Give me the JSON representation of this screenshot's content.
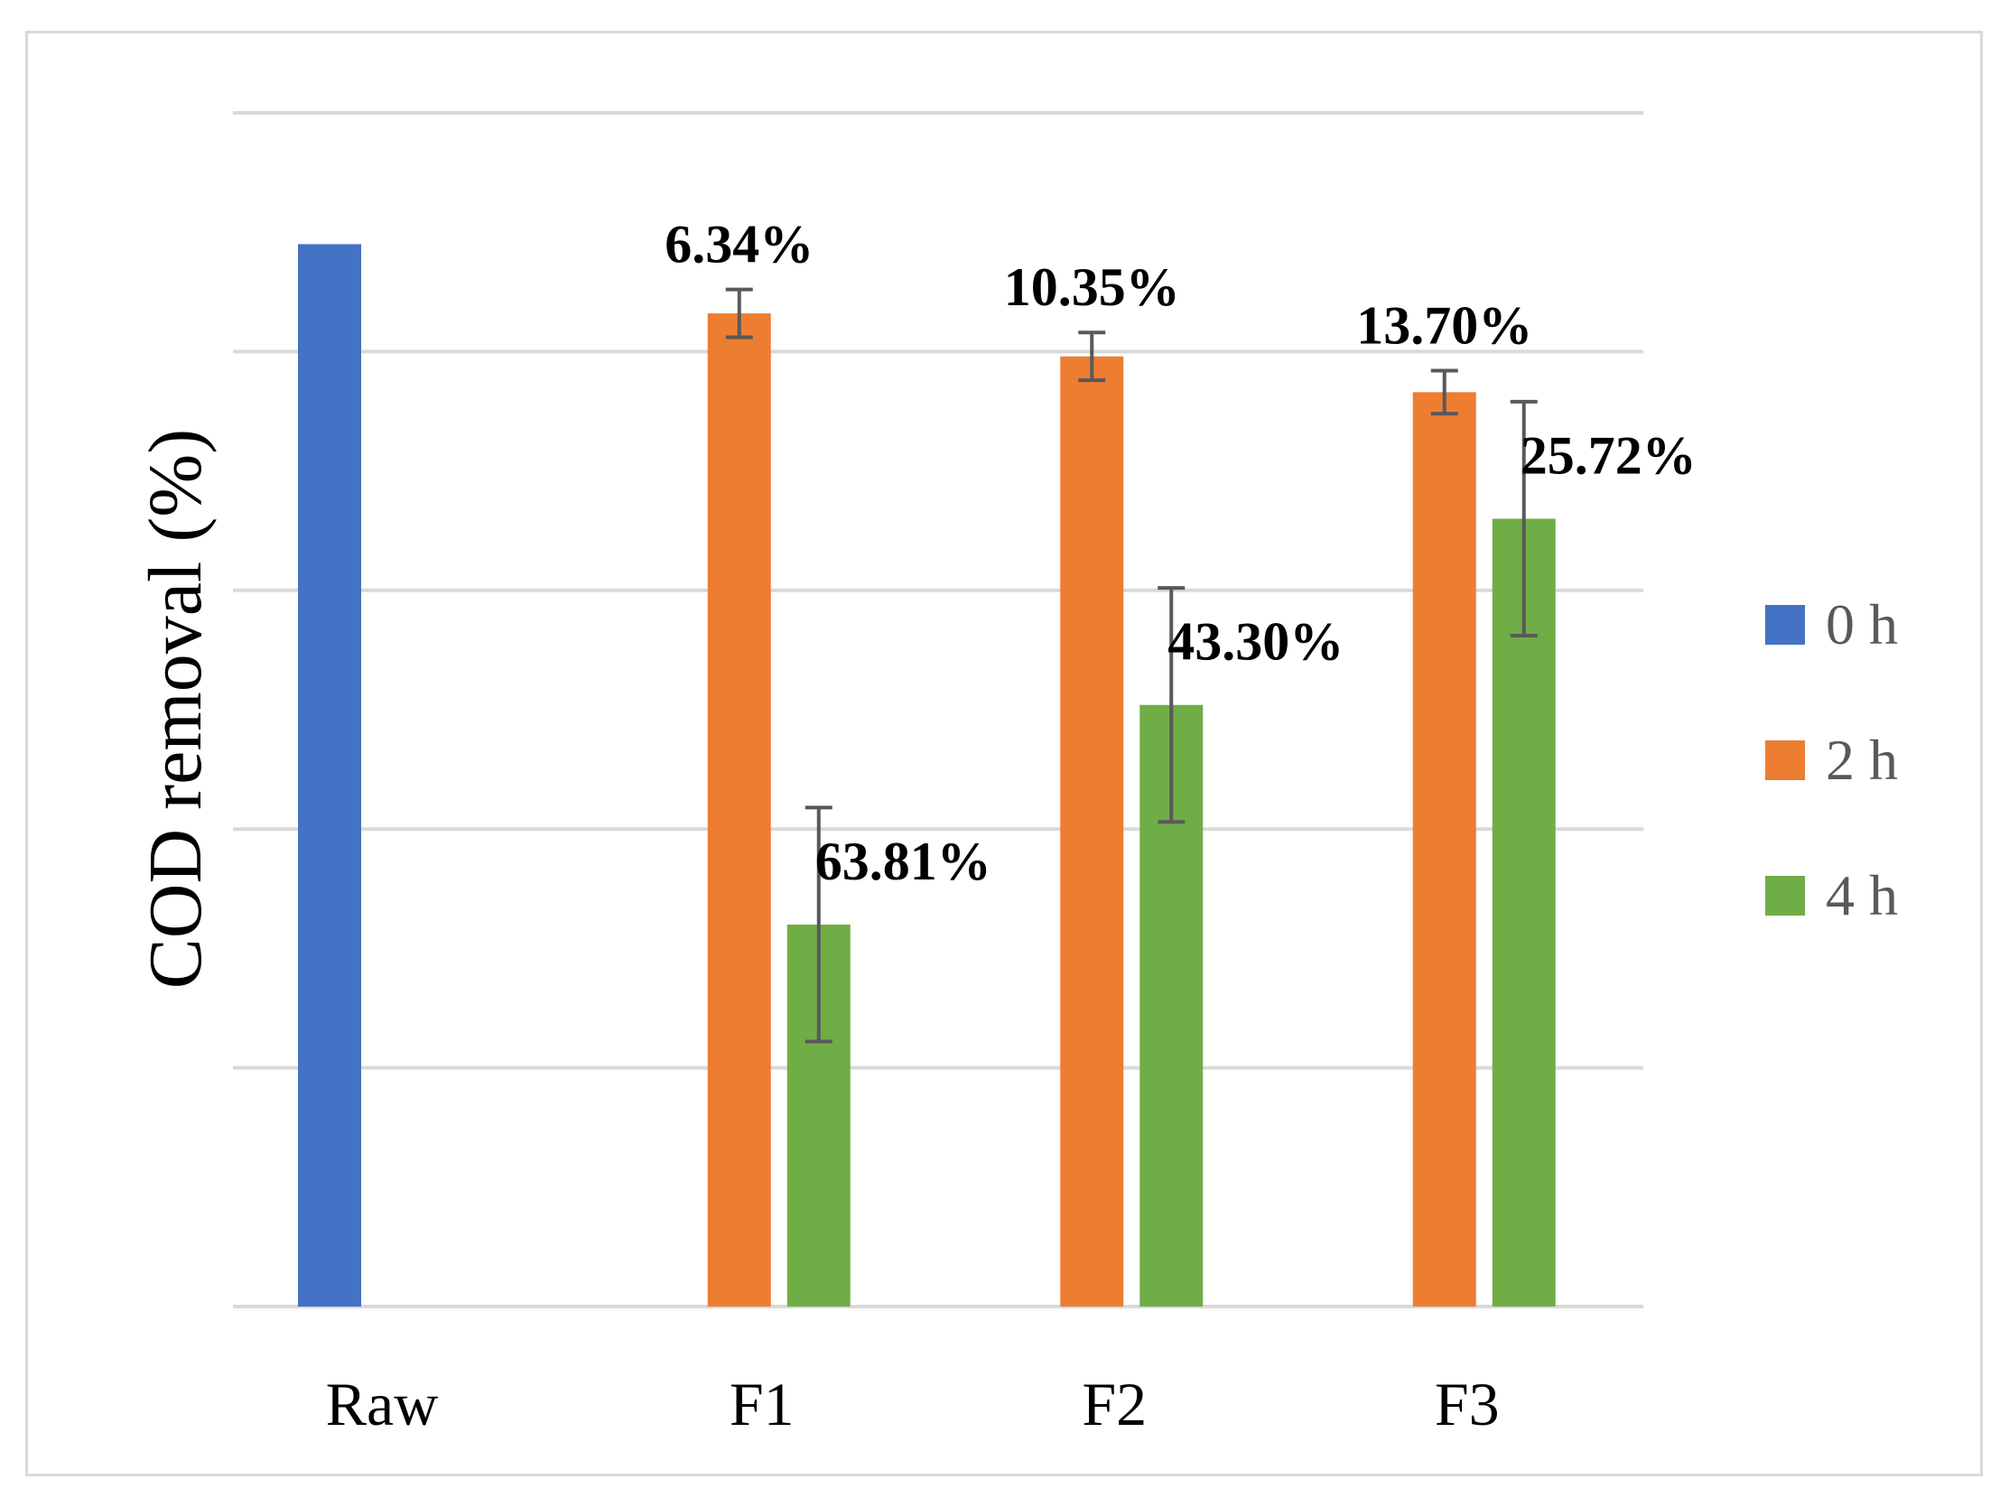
{
  "chart_data": {
    "type": "bar",
    "title": "",
    "xlabel": "",
    "ylabel": "COD removal (%)",
    "categories": [
      "Raw",
      "F1",
      "F2",
      "F3"
    ],
    "ylim": [
      0,
      5
    ],
    "ytick_labels_shown": false,
    "grid": true,
    "legend_position": "right",
    "series": [
      {
        "name": "0 h",
        "color": "#4472C4",
        "values": [
          4.45,
          null,
          null,
          null
        ],
        "errors": [
          null,
          null,
          null,
          null
        ],
        "labels": [
          null,
          null,
          null,
          null
        ]
      },
      {
        "name": "2 h",
        "color": "#ED7D31",
        "values": [
          null,
          4.16,
          3.98,
          3.83
        ],
        "errors": [
          null,
          0.1,
          0.1,
          0.09
        ],
        "labels": [
          null,
          "6.34%",
          "10.35%",
          "13.70%"
        ]
      },
      {
        "name": "4 h",
        "color": "#70AD47",
        "values": [
          null,
          1.6,
          2.52,
          3.3
        ],
        "errors": [
          null,
          0.49,
          0.49,
          0.49
        ],
        "labels": [
          null,
          "63.81%",
          "43.30%",
          "25.72%"
        ]
      }
    ],
    "error_bar_color": "#595959",
    "gridline_color": "#d9d9d9"
  }
}
